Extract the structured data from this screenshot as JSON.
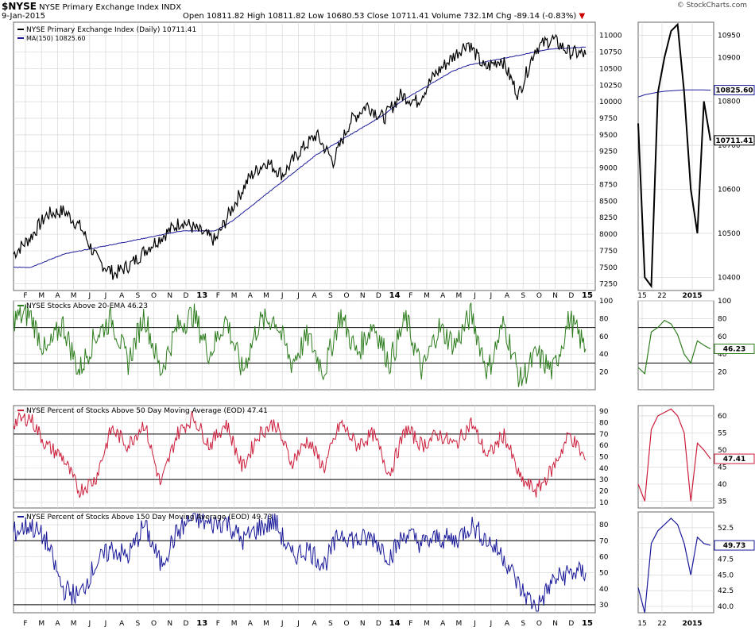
{
  "header": {
    "symbol": "$NYSE",
    "name": "NYSE Primary Exchange Index",
    "exchange": "INDX",
    "date": "9-Jan-2015",
    "brand": "© StockCharts.com",
    "ohlc": {
      "open_label": "Open",
      "open": "10811.82",
      "high_label": "High",
      "high": "10811.82",
      "low_label": "Low",
      "low": "10680.53",
      "close_label": "Close",
      "close": "10711.41",
      "volume_label": "Volume",
      "volume": "732.1M",
      "chg_label": "Chg",
      "chg": "-89.14 (-0.83%)",
      "chg_arrow": "▼"
    }
  },
  "colors": {
    "price": "#000000",
    "ma": "#1a1a9a",
    "ema20": "#2e7d1e",
    "ma50": "#cc1f3c",
    "ma150": "#1a1a9a",
    "grid": "#d8d8d8",
    "arrow": "#cc0000"
  },
  "chart_data": [
    {
      "type": "line",
      "title": "NYSE Primary Exchange Index (Daily)",
      "series": [
        {
          "name": "NYSE Primary Exchange Index (Daily)",
          "last": "10711.41",
          "values": [
            7700,
            7950,
            8300,
            8350,
            8100,
            7600,
            7400,
            7550,
            7800,
            8000,
            8200,
            8050,
            7900,
            8400,
            8850,
            9100,
            8900,
            9250,
            9500,
            9100,
            9700,
            9950,
            9750,
            10100,
            10000,
            10400,
            10650,
            10900,
            10500,
            10650,
            10100,
            10800,
            10950,
            10750,
            10711
          ]
        },
        {
          "name": "MA(150)",
          "last": "10825.60",
          "values": [
            7500,
            7500,
            7600,
            7700,
            7750,
            7800,
            7850,
            7900,
            7950,
            8000,
            8050,
            8050,
            8050,
            8200,
            8400,
            8600,
            8800,
            9000,
            9200,
            9350,
            9500,
            9650,
            9800,
            10000,
            10150,
            10300,
            10450,
            10550,
            10600,
            10650,
            10700,
            10750,
            10800,
            10810,
            10825
          ]
        }
      ],
      "ylim": [
        7150,
        11200
      ],
      "yticks": [
        "7250",
        "7500",
        "7750",
        "8000",
        "8250",
        "8500",
        "8750",
        "9000",
        "9250",
        "9500",
        "9750",
        "10000",
        "10250",
        "10500",
        "10750",
        "11000"
      ],
      "xticks": [
        "F",
        "M",
        "A",
        "M",
        "J",
        "J",
        "A",
        "S",
        "O",
        "N",
        "D",
        "13",
        "F",
        "M",
        "A",
        "M",
        "J",
        "J",
        "A",
        "S",
        "O",
        "N",
        "D",
        "14",
        "F",
        "M",
        "A",
        "M",
        "J",
        "J",
        "A",
        "S",
        "O",
        "N",
        "D",
        "15"
      ],
      "zoom": {
        "xticks": [
          "15",
          "22",
          "2015"
        ],
        "yticks": [
          "10400",
          "10500",
          "10600",
          "10700",
          "10800",
          "10900",
          "10950"
        ],
        "ylim": [
          10370,
          10980
        ],
        "price": [
          10750,
          10400,
          10380,
          10820,
          10900,
          10960,
          10975,
          10820,
          10600,
          10500,
          10800,
          10711
        ],
        "ma": [
          10810,
          10815,
          10818,
          10821,
          10823,
          10824,
          10825,
          10826,
          10826,
          10826,
          10826,
          10825.6
        ],
        "last_label": "10711.41",
        "ma_label": "10825.60"
      }
    },
    {
      "type": "line",
      "title": "NYSE Stocks Above 20-EMA",
      "series": [
        {
          "name": "NYSE Stocks Above 20-EMA",
          "last": "46.23",
          "values": [
            80,
            85,
            40,
            75,
            20,
            60,
            80,
            30,
            85,
            20,
            70,
            85,
            40,
            80,
            20,
            75,
            80,
            30,
            60,
            20,
            85,
            40,
            75,
            30,
            80,
            20,
            70,
            50,
            85,
            20,
            75,
            10,
            40,
            20,
            80,
            46
          ]
        }
      ],
      "ylim": [
        0,
        100
      ],
      "yticks": [
        "20",
        "40",
        "60",
        "80",
        "100"
      ],
      "reference_lines": [
        30,
        70
      ],
      "zoom": {
        "values": [
          25,
          18,
          65,
          70,
          78,
          74,
          62,
          40,
          30,
          55,
          50,
          46
        ],
        "ylim": [
          0,
          100
        ],
        "yticks": [
          "20",
          "40",
          "60",
          "80",
          "100"
        ],
        "last_label": "46.23"
      }
    },
    {
      "type": "line",
      "title": "NYSE Percent of Stocks Above 50 Day Moving Average (EOD)",
      "series": [
        {
          "name": "NYSE Percent of Stocks Above 50 Day Moving Average (EOD)",
          "last": "47.41",
          "values": [
            80,
            85,
            60,
            50,
            20,
            30,
            75,
            60,
            80,
            25,
            70,
            85,
            60,
            80,
            40,
            70,
            80,
            45,
            65,
            40,
            80,
            60,
            70,
            35,
            75,
            60,
            70,
            60,
            80,
            50,
            70,
            30,
            20,
            40,
            70,
            47
          ]
        }
      ],
      "ylim": [
        5,
        95
      ],
      "yticks": [
        "10",
        "20",
        "30",
        "40",
        "50",
        "60",
        "70",
        "80",
        "90"
      ],
      "reference_lines": [
        30,
        70
      ],
      "zoom": {
        "values": [
          40,
          35,
          56,
          60,
          61,
          62,
          60,
          55,
          35,
          52,
          50,
          47.4
        ],
        "ylim": [
          33,
          63
        ],
        "yticks": [
          "35",
          "40",
          "45",
          "50",
          "55",
          "60"
        ],
        "last_label": "47.41"
      }
    },
    {
      "type": "line",
      "title": "NYSE Percent of Stocks Above 150 Day Moving Average (EOD)",
      "series": [
        {
          "name": "NYSE Percent of Stocks Above 150 Day Moving Average (EOD)",
          "last": "49.73",
          "values": [
            75,
            80,
            70,
            40,
            35,
            55,
            65,
            60,
            80,
            55,
            75,
            85,
            80,
            82,
            70,
            78,
            82,
            60,
            65,
            55,
            75,
            70,
            72,
            60,
            75,
            68,
            72,
            70,
            80,
            70,
            60,
            40,
            28,
            45,
            50,
            50
          ]
        }
      ],
      "ylim": [
        25,
        88
      ],
      "yticks": [
        "30",
        "40",
        "50",
        "60",
        "70",
        "80"
      ],
      "reference_lines": [
        30,
        70
      ],
      "zoom": {
        "values": [
          43,
          39,
          50,
          52,
          53,
          54,
          53,
          50,
          45,
          51,
          50,
          49.7
        ],
        "ylim": [
          39,
          55
        ],
        "yticks": [
          "40.0",
          "42.5",
          "45.0",
          "47.5",
          "50.0",
          "52.5"
        ],
        "last_label": "49.73"
      }
    }
  ]
}
